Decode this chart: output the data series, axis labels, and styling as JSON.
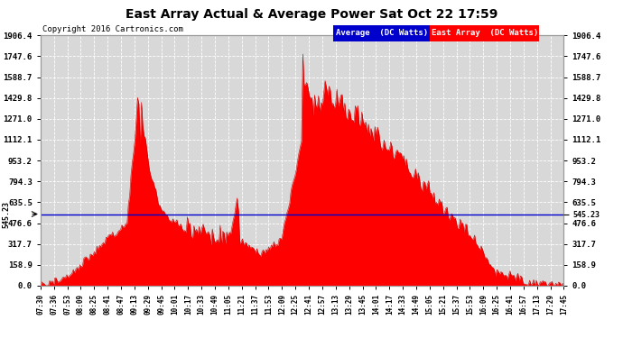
{
  "title": "East Array Actual & Average Power Sat Oct 22 17:59",
  "copyright": "Copyright 2016 Cartronics.com",
  "average_value": 545.23,
  "ylim": [
    0,
    1906.4
  ],
  "yticks": [
    0.0,
    158.9,
    317.7,
    476.6,
    635.5,
    794.3,
    953.2,
    1112.1,
    1271.0,
    1429.8,
    1588.7,
    1747.6,
    1906.4
  ],
  "bg_color": "#ffffff",
  "plot_bg_color": "#d8d8d8",
  "grid_color": "#ffffff",
  "fill_color": "#ff0000",
  "line_color": "#cc0000",
  "avg_line_color": "#0000cc",
  "legend_avg_bg": "#0000cc",
  "legend_east_bg": "#ff0000",
  "avg_label": "545.23",
  "xtick_labels": [
    "07:30",
    "07:36",
    "07:53",
    "08:09",
    "08:25",
    "08:41",
    "08:47",
    "09:13",
    "09:29",
    "09:45",
    "10:01",
    "10:17",
    "10:33",
    "10:49",
    "11:05",
    "11:21",
    "11:37",
    "11:53",
    "12:09",
    "12:25",
    "12:41",
    "12:57",
    "13:13",
    "13:29",
    "13:45",
    "14:01",
    "14:17",
    "14:33",
    "14:49",
    "15:05",
    "15:21",
    "15:37",
    "15:53",
    "16:09",
    "16:25",
    "16:41",
    "16:57",
    "17:13",
    "17:29",
    "17:45"
  ]
}
